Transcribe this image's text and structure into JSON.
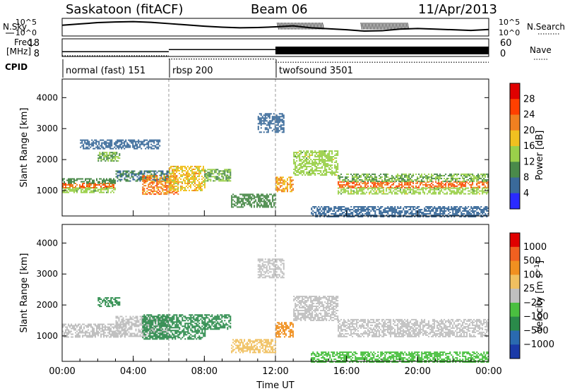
{
  "header": {
    "station": "Saskatoon (fitACF)",
    "beam": "Beam 06",
    "date": "11/Apr/2013"
  },
  "nsky_panel": {
    "left_label": "N.Sky",
    "right_label": "N.Search",
    "left_ticks": [
      "10^5",
      "10^0"
    ],
    "right_ticks": [
      "10^5",
      "10^0"
    ],
    "left_range_log10": [
      0,
      5
    ],
    "nsky_profile": [
      [
        0,
        3.1
      ],
      [
        1,
        3.5
      ],
      [
        2,
        3.9
      ],
      [
        3,
        4.1
      ],
      [
        4,
        4.2
      ],
      [
        5,
        4.0
      ],
      [
        6,
        3.6
      ],
      [
        7,
        3.2
      ],
      [
        8,
        2.8
      ],
      [
        9,
        2.5
      ],
      [
        10,
        2.3
      ],
      [
        11,
        2.4
      ],
      [
        12,
        2.6
      ],
      [
        13,
        2.9
      ],
      [
        14,
        2.3
      ],
      [
        15,
        2.0
      ],
      [
        16,
        1.7
      ],
      [
        17,
        1.3
      ],
      [
        18,
        1.4
      ],
      [
        19,
        1.9
      ],
      [
        20,
        2.1
      ],
      [
        21,
        1.9
      ],
      [
        22,
        1.7
      ],
      [
        23,
        1.5
      ],
      [
        24,
        1.8
      ]
    ],
    "nsearch_bands": [
      [
        12.1,
        14.7
      ],
      [
        16.8,
        19.5
      ]
    ]
  },
  "freq_panel": {
    "left_label_line1": "Freq.",
    "left_label_line2": "[MHz]",
    "right_label": "Nave",
    "left_ticks": [
      "18",
      "8"
    ],
    "right_ticks": [
      "60",
      "0"
    ],
    "freq_range_MHz": [
      8,
      18
    ],
    "freq_segments": [
      [
        0,
        6,
        10.5
      ],
      [
        6,
        12,
        11.8
      ],
      [
        12,
        24,
        10.8
      ]
    ],
    "nave_segments": [
      [
        0,
        6,
        8
      ],
      [
        6,
        12,
        6
      ],
      [
        12,
        24,
        4
      ]
    ]
  },
  "cpid": {
    "label": "CPID",
    "segments": [
      {
        "start": 0,
        "end": 6,
        "name": "normal (fast) 151"
      },
      {
        "start": 6,
        "end": 12,
        "name": "rbsp 200"
      },
      {
        "start": 12,
        "end": 24,
        "name": "twofsound 3501"
      }
    ]
  },
  "chart_data": [
    {
      "type": "heatmap",
      "quantity": "Power",
      "ylabel": "Slant Range [km]",
      "xlim": [
        0,
        24
      ],
      "ylim": [
        180,
        4600
      ],
      "yticks": [
        1000,
        2000,
        3000,
        4000
      ],
      "colorbar": {
        "label": "Power [dB]",
        "range": [
          0,
          32
        ],
        "ticks": [
          "28",
          "24",
          "20",
          "16",
          "12",
          "8",
          "4"
        ],
        "tick_values": [
          28,
          24,
          20,
          16,
          12,
          8,
          4
        ],
        "colors": [
          "#2a2aff",
          "#3a6a9a",
          "#4a8a4a",
          "#9ad04a",
          "#f0c020",
          "#f08020",
          "#ff4000",
          "#e00000"
        ]
      },
      "echo_bands": [
        {
          "t0": 0.0,
          "t1": 3.0,
          "r0": 1100,
          "r1": 1250,
          "level": 24
        },
        {
          "t0": 0.0,
          "t1": 3.0,
          "r0": 950,
          "r1": 1100,
          "level": 14
        },
        {
          "t0": 0.0,
          "t1": 3.0,
          "r0": 1250,
          "r1": 1400,
          "level": 10
        },
        {
          "t0": 3.0,
          "t1": 6.0,
          "r0": 1300,
          "r1": 1650,
          "level": 8
        },
        {
          "t0": 2.0,
          "t1": 3.2,
          "r0": 1950,
          "r1": 2250,
          "level": 12
        },
        {
          "t0": 1.0,
          "t1": 5.5,
          "r0": 2350,
          "r1": 2650,
          "level": 6
        },
        {
          "t0": 4.5,
          "t1": 6.5,
          "r0": 900,
          "r1": 1500,
          "level": 22
        },
        {
          "t0": 6.0,
          "t1": 8.0,
          "r0": 1000,
          "r1": 1800,
          "level": 18
        },
        {
          "t0": 8.0,
          "t1": 9.5,
          "r0": 1300,
          "r1": 1700,
          "level": 12
        },
        {
          "t0": 9.5,
          "t1": 12.0,
          "r0": 450,
          "r1": 900,
          "level": 10
        },
        {
          "t0": 12.0,
          "t1": 13.0,
          "r0": 950,
          "r1": 1450,
          "level": 20
        },
        {
          "t0": 13.0,
          "t1": 15.5,
          "r0": 1500,
          "r1": 2300,
          "level": 14
        },
        {
          "t0": 15.5,
          "t1": 24.0,
          "r0": 1100,
          "r1": 1300,
          "level": 24
        },
        {
          "t0": 15.5,
          "t1": 24.0,
          "r0": 900,
          "r1": 1100,
          "level": 14
        },
        {
          "t0": 15.5,
          "t1": 24.0,
          "r0": 1300,
          "r1": 1550,
          "level": 12
        },
        {
          "t0": 14.0,
          "t1": 24.0,
          "r0": 180,
          "r1": 500,
          "level": 6
        },
        {
          "t0": 11.0,
          "t1": 12.5,
          "r0": 2900,
          "r1": 3500,
          "level": 6
        }
      ]
    },
    {
      "type": "heatmap",
      "quantity": "Velocity",
      "ylabel": "Slant Range [km]",
      "xlabel": "Time UT",
      "xlim": [
        0,
        24
      ],
      "ylim": [
        180,
        4600
      ],
      "yticks": [
        1000,
        2000,
        3000,
        4000
      ],
      "xticks": [
        "00:00",
        "04:00",
        "08:00",
        "12:00",
        "16:00",
        "20:00",
        "00:00"
      ],
      "xtick_hours": [
        0,
        4,
        8,
        12,
        16,
        20,
        24
      ],
      "colorbar": {
        "label": "Velocity [m s^-1]",
        "ticks": [
          "1000",
          "500",
          "100",
          "25",
          "−25",
          "−100",
          "−500",
          "−1000"
        ],
        "tick_values": [
          1000,
          500,
          100,
          25,
          -25,
          -100,
          -500,
          -1000
        ],
        "colors": [
          "#1a3aa8",
          "#2a6ab0",
          "#2a8a4a",
          "#4ac040",
          "#c0c0c0",
          "#f0c060",
          "#f09020",
          "#f06020",
          "#e00000"
        ],
        "ground_scatter_color": "#c0c0c0"
      },
      "echo_bands": [
        {
          "t0": 0.0,
          "t1": 3.5,
          "r0": 950,
          "r1": 1400,
          "level": 0
        },
        {
          "t0": 3.0,
          "t1": 6.0,
          "r0": 1000,
          "r1": 1650,
          "level": 0
        },
        {
          "t0": 2.0,
          "t1": 3.2,
          "r0": 1950,
          "r1": 2250,
          "level": 200
        },
        {
          "t0": 4.5,
          "t1": 8.0,
          "r0": 900,
          "r1": 1700,
          "level": 300
        },
        {
          "t0": 8.0,
          "t1": 9.5,
          "r0": 1200,
          "r1": 1700,
          "level": 150
        },
        {
          "t0": 9.5,
          "t1": 12.0,
          "r0": 450,
          "r1": 900,
          "level": -80
        },
        {
          "t0": 12.0,
          "t1": 13.0,
          "r0": 950,
          "r1": 1450,
          "level": -300
        },
        {
          "t0": 13.0,
          "t1": 15.5,
          "r0": 1500,
          "r1": 2300,
          "level": 0
        },
        {
          "t0": 15.5,
          "t1": 24.0,
          "r0": 1000,
          "r1": 1550,
          "level": 0
        },
        {
          "t0": 14.0,
          "t1": 24.0,
          "r0": 180,
          "r1": 500,
          "level": 50
        },
        {
          "t0": 11.0,
          "t1": 12.5,
          "r0": 2900,
          "r1": 3500,
          "level": 0
        }
      ]
    }
  ]
}
